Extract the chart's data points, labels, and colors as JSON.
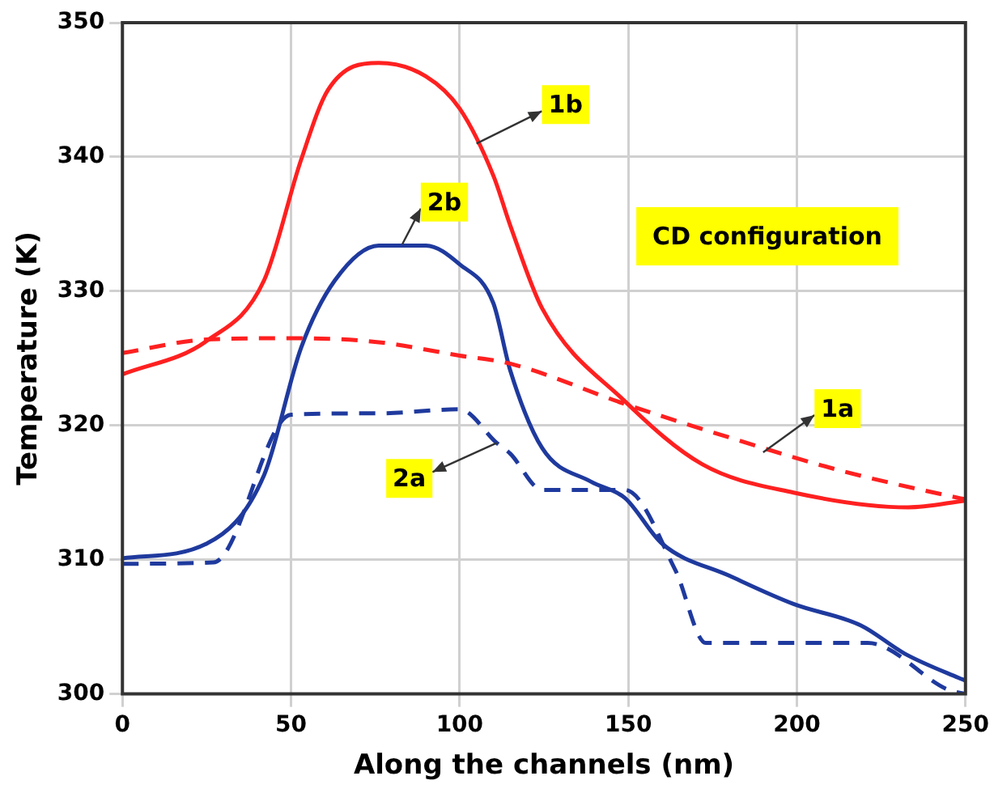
{
  "chart_data": {
    "type": "line",
    "xlabel": "Along the channels (nm)",
    "ylabel": "Temperature (K)",
    "xlim": [
      0,
      250
    ],
    "xticks": [
      0,
      50,
      100,
      150,
      200,
      250
    ],
    "ylim": [
      300,
      350
    ],
    "yticks": [
      300,
      310,
      320,
      330,
      340,
      350
    ],
    "grid": true,
    "legend": false,
    "marker": "none",
    "annotations": [
      {
        "text": "1b",
        "x": 105,
        "y": 341
      },
      {
        "text": "2b",
        "x": 83,
        "y": 333.5
      },
      {
        "text": "1a",
        "x": 190,
        "y": 318
      },
      {
        "text": "2a",
        "x": 111,
        "y": 318.7
      },
      "CD configuration"
    ],
    "series": [
      {
        "color": "#ff2020",
        "line_style": "solid",
        "x": [
          0,
          25,
          42,
          53,
          61,
          76,
          90,
          100,
          110,
          115,
          124.5,
          149,
          172,
          199,
          233,
          250
        ],
        "values": [
          323.8,
          326.3,
          330.8,
          339.8,
          345,
          347,
          346,
          343.6,
          338.6,
          334.9,
          328.7,
          321.8,
          317.1,
          315,
          313.9,
          314.4
        ]
      },
      {
        "color": "#ff2020",
        "line_style": "dashed",
        "x": [
          0,
          25,
          51,
          76,
          100,
          115,
          149,
          180,
          212,
          248,
          250
        ],
        "values": [
          325.4,
          326.4,
          326.5,
          326.2,
          325.2,
          324.6,
          321.6,
          319.1,
          316.7,
          314.6,
          314.5
        ]
      },
      {
        "color": "#1f3a9e",
        "line_style": "solid",
        "x": [
          0,
          25,
          42,
          53,
          63,
          76,
          90,
          100,
          110,
          115,
          124.5,
          139,
          149,
          160,
          180,
          199,
          219,
          232,
          248,
          250
        ],
        "values": [
          310.1,
          311.2,
          316.3,
          325.8,
          330.8,
          333.4,
          333.4,
          332,
          329.1,
          324.1,
          318.3,
          315.8,
          314.6,
          311.2,
          308.8,
          306.7,
          305.1,
          303,
          301.2,
          301
        ]
      },
      {
        "color": "#1f3a9e",
        "line_style": "dashed",
        "x": [
          0,
          27,
          50,
          76,
          100,
          111,
          115,
          124.5,
          149,
          164,
          173,
          221,
          245,
          250
        ],
        "values": [
          309.7,
          309.8,
          320.8,
          320.9,
          321.2,
          318.7,
          317.9,
          315.2,
          315.2,
          309.2,
          303.8,
          303.8,
          300.3,
          300
        ]
      }
    ]
  }
}
